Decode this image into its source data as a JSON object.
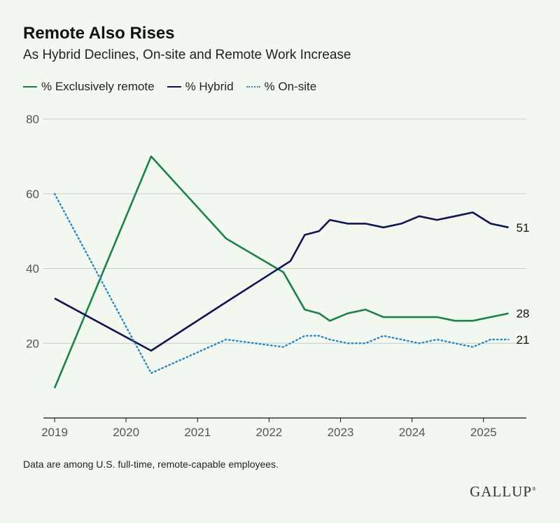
{
  "header": {
    "title": "Remote Also Rises",
    "subtitle": "As Hybrid Declines, On-site and Remote Work Increase"
  },
  "note": "Data are among U.S. full-time, remote-capable employees.",
  "logo": {
    "text": "GALLUP",
    "mark": "®"
  },
  "colors": {
    "remote": "#1a8147",
    "hybrid": "#0c1653",
    "onsite": "#2a86bb",
    "grid": "#c8ccc8",
    "axis": "#111111"
  },
  "chart_data": {
    "type": "line",
    "title": "Remote Also Rises",
    "subtitle": "As Hybrid Declines, On-site and Remote Work Increase",
    "xlabel": "",
    "ylabel": "",
    "xlim": [
      2019,
      2025.6
    ],
    "ylim": [
      0,
      80
    ],
    "yticks": [
      20,
      40,
      60,
      80
    ],
    "xticks": [
      2019,
      2020,
      2021,
      2022,
      2023,
      2024,
      2025
    ],
    "grid": true,
    "legend_position": "top-left",
    "series": [
      {
        "name": "% Exclusively remote",
        "color": "#1a8147",
        "style": "solid",
        "end_label": "28",
        "points": [
          [
            2019.0,
            8
          ],
          [
            2020.35,
            70
          ],
          [
            2021.4,
            48
          ],
          [
            2022.2,
            39
          ],
          [
            2022.5,
            29
          ],
          [
            2022.7,
            28
          ],
          [
            2022.85,
            26
          ],
          [
            2023.1,
            28
          ],
          [
            2023.35,
            29
          ],
          [
            2023.6,
            27
          ],
          [
            2023.85,
            27
          ],
          [
            2024.1,
            27
          ],
          [
            2024.35,
            27
          ],
          [
            2024.6,
            26
          ],
          [
            2024.85,
            26
          ],
          [
            2025.35,
            28
          ]
        ]
      },
      {
        "name": "% Hybrid",
        "color": "#0c1653",
        "style": "solid",
        "end_label": "51",
        "points": [
          [
            2019.0,
            32
          ],
          [
            2020.35,
            18
          ],
          [
            2021.4,
            31
          ],
          [
            2022.3,
            42
          ],
          [
            2022.5,
            49
          ],
          [
            2022.7,
            50
          ],
          [
            2022.85,
            53
          ],
          [
            2023.1,
            52
          ],
          [
            2023.35,
            52
          ],
          [
            2023.6,
            51
          ],
          [
            2023.85,
            52
          ],
          [
            2024.1,
            54
          ],
          [
            2024.35,
            53
          ],
          [
            2024.6,
            54
          ],
          [
            2024.85,
            55
          ],
          [
            2025.1,
            52
          ],
          [
            2025.35,
            51
          ]
        ]
      },
      {
        "name": "% On-site",
        "color": "#2a86bb",
        "style": "dotted",
        "end_label": "21",
        "points": [
          [
            2019.0,
            60
          ],
          [
            2020.35,
            12
          ],
          [
            2021.4,
            21
          ],
          [
            2022.2,
            19
          ],
          [
            2022.5,
            22
          ],
          [
            2022.7,
            22
          ],
          [
            2022.85,
            21
          ],
          [
            2023.1,
            20
          ],
          [
            2023.35,
            20
          ],
          [
            2023.6,
            22
          ],
          [
            2023.85,
            21
          ],
          [
            2024.1,
            20
          ],
          [
            2024.35,
            21
          ],
          [
            2024.6,
            20
          ],
          [
            2024.85,
            19
          ],
          [
            2025.1,
            21
          ],
          [
            2025.35,
            21
          ]
        ]
      }
    ]
  }
}
